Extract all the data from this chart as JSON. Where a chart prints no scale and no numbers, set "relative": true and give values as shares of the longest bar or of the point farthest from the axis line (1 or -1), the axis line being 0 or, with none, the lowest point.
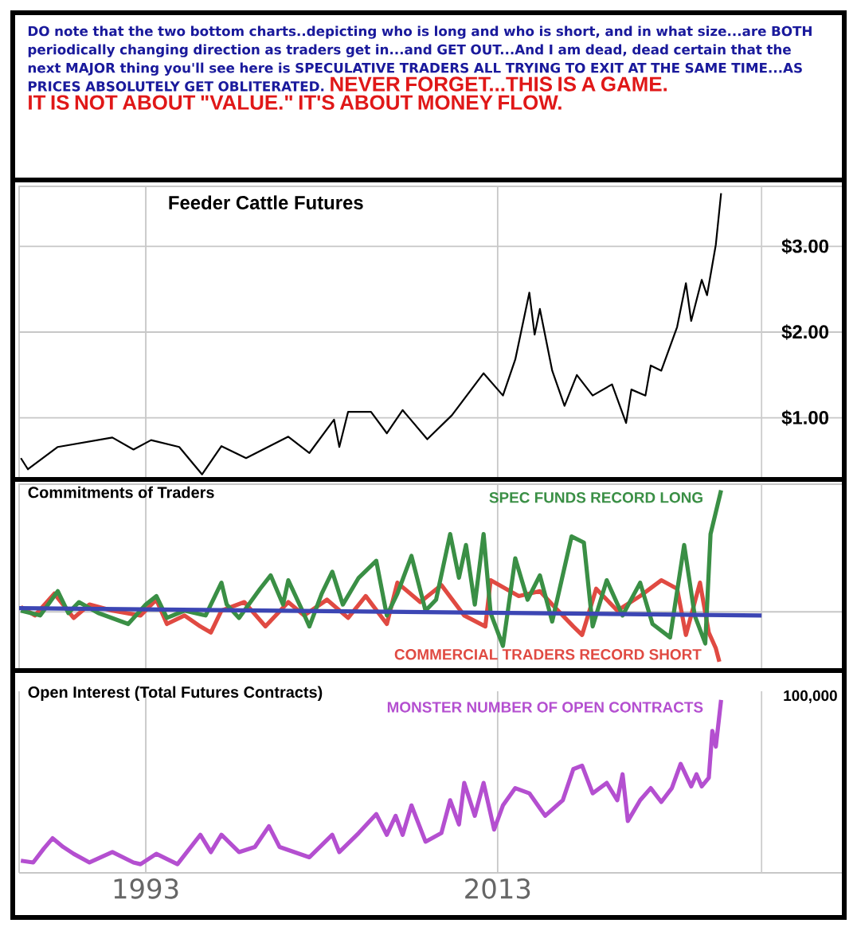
{
  "chart_data": [
    {
      "type": "other",
      "annotations": [
        "DO note that the two bottom charts..depicting who is long and who is short, and in what size...are BOTH periodically changing direction as traders get in...and GET OUT...And I am dead, dead certain that the next MAJOR thing you'll see here is SPECULATIVE TRADERS ALL TRYING TO EXIT AT THE SAME TIME...AS PRICES ABSOLUTELY GET OBLITERATED.",
        "NEVER FORGET...THIS IS A GAME.",
        "IT IS NOT ABOUT \"VALUE.\" IT'S ABOUT MONEY FLOW."
      ]
    },
    {
      "type": "line",
      "title": "Feeder Cattle Futures",
      "xlim": [
        1985.8,
        2032.7
      ],
      "xticks": [
        1993,
        2013
      ],
      "ref_lines": [
        {
          "axis": "x",
          "value": 2028,
          "color": "#cccccc"
        }
      ],
      "ylim": [
        0.3,
        3.7
      ],
      "yticks": [
        {
          "value": 1,
          "label": "$1.00"
        },
        {
          "value": 2,
          "label": "$2.00"
        },
        {
          "value": 3,
          "label": "$3.00"
        }
      ],
      "grid": true,
      "tick_labels": "y",
      "series": [
        {
          "color": "#000000",
          "x": [
            1985.9,
            1986.3,
            1988.0,
            1991.1,
            1992.3,
            1993.3,
            1994.9,
            1996.2,
            1997.3,
            1998.7,
            2001.1,
            2002.3,
            2003.7,
            2004.0,
            2004.5,
            2005.8,
            2006.7,
            2007.6,
            2009.0,
            2010.4,
            2012.2,
            2013.3,
            2014.0,
            2014.8,
            2015.1,
            2015.4,
            2016.1,
            2016.8,
            2017.5,
            2018.4,
            2019.5,
            2020.3,
            2020.6,
            2021.4,
            2021.7,
            2022.3,
            2023.2,
            2023.7,
            2024.0,
            2024.6,
            2024.9,
            2025.4,
            2025.7
          ],
          "values": [
            0.53,
            0.4,
            0.66,
            0.77,
            0.63,
            0.74,
            0.66,
            0.34,
            0.67,
            0.53,
            0.78,
            0.59,
            0.98,
            0.66,
            1.07,
            1.07,
            0.82,
            1.09,
            0.75,
            1.03,
            1.52,
            1.26,
            1.68,
            2.46,
            1.97,
            2.27,
            1.55,
            1.14,
            1.5,
            1.26,
            1.39,
            0.94,
            1.33,
            1.26,
            1.61,
            1.55,
            2.06,
            2.57,
            2.13,
            2.61,
            2.43,
            3.02,
            3.62
          ]
        }
      ]
    },
    {
      "type": "line",
      "title": "Commitments of Traders",
      "relative": true,
      "xlim": [
        1985.8,
        2032.7
      ],
      "xticks": [
        1993,
        2013
      ],
      "ref_lines": [
        {
          "axis": "x",
          "value": 2028,
          "color": "#cccccc"
        }
      ],
      "grid": "x",
      "tick_labels": false,
      "series": [
        {
          "name": "COMMERCIAL TRADERS RECORD SHORT",
          "color": "#e04a42",
          "x": [
            1985.9,
            1986.7,
            1987.8,
            1988.9,
            1989.8,
            1991.1,
            1992.7,
            1993.6,
            1994.2,
            1995.2,
            1996.1,
            1996.7,
            1997.3,
            1998.6,
            1999.8,
            2001.1,
            2002.0,
            2003.3,
            2004.5,
            2005.5,
            2006.7,
            2007.3,
            2008.6,
            2009.8,
            2011.1,
            2012.3,
            2012.6,
            2014.2,
            2015.4,
            2016.1,
            2017.3,
            2017.8,
            2018.6,
            2019.8,
            2021.1,
            2022.3,
            2023.2,
            2023.7,
            2024.5,
            2025.0,
            2025.4,
            2025.6
          ],
          "values": [
            0.04,
            -0.03,
            0.15,
            -0.05,
            0.06,
            0.01,
            -0.03,
            0.1,
            -0.1,
            -0.03,
            -0.12,
            -0.17,
            0.01,
            0.08,
            -0.12,
            0.08,
            -0.03,
            0.1,
            -0.05,
            0.13,
            -0.1,
            0.24,
            0.08,
            0.22,
            -0.03,
            -0.12,
            0.26,
            0.13,
            0.17,
            0.06,
            -0.12,
            -0.19,
            0.19,
            0.01,
            0.13,
            0.26,
            0.19,
            -0.19,
            0.24,
            -0.17,
            -0.3,
            -0.41
          ]
        },
        {
          "name": "SPEC FUNDS RECORD LONG",
          "color": "#3a8f45",
          "x": [
            1985.9,
            1987.0,
            1988.0,
            1988.6,
            1989.2,
            1990.3,
            1992.0,
            1993.0,
            1993.6,
            1994.2,
            1995.2,
            1996.4,
            1997.3,
            1997.6,
            1998.3,
            1999.5,
            2000.1,
            2000.8,
            2001.1,
            2001.9,
            2002.3,
            2003.0,
            2003.6,
            2004.2,
            2005.1,
            2006.1,
            2006.7,
            2007.3,
            2008.1,
            2008.9,
            2009.5,
            2010.3,
            2010.8,
            2011.2,
            2011.7,
            2012.2,
            2012.6,
            2013.3,
            2014.0,
            2014.7,
            2015.4,
            2016.1,
            2017.2,
            2017.9,
            2018.4,
            2019.2,
            2020.1,
            2021.1,
            2021.8,
            2022.8,
            2023.6,
            2024.2,
            2024.8,
            2025.1,
            2025.4,
            2025.7
          ],
          "values": [
            0.01,
            -0.03,
            0.17,
            -0.01,
            0.08,
            -0.01,
            -0.1,
            0.06,
            0.13,
            -0.05,
            0.01,
            -0.03,
            0.24,
            0.06,
            -0.05,
            0.19,
            0.3,
            0.06,
            0.26,
            0.01,
            -0.12,
            0.15,
            0.33,
            0.06,
            0.28,
            0.42,
            -0.03,
            0.15,
            0.46,
            0.01,
            0.1,
            0.64,
            0.28,
            0.55,
            0.06,
            0.64,
            -0.01,
            -0.28,
            0.44,
            0.1,
            0.3,
            -0.08,
            0.62,
            0.57,
            -0.12,
            0.26,
            -0.03,
            0.24,
            -0.1,
            -0.21,
            0.55,
            -0.03,
            -0.26,
            0.64,
            0.82,
            1
          ]
        },
        {
          "color": "#3c46b4",
          "x": [
            1985.8,
            2028
          ],
          "values": [
            0.03,
            -0.03
          ]
        }
      ]
    },
    {
      "type": "line",
      "title": "Open Interest (Total Futures Contracts)",
      "relative": true,
      "annotations": [
        "100,000"
      ],
      "xlim": [
        1985.8,
        2032.7
      ],
      "xticks": [
        1993,
        2013
      ],
      "ref_lines": [
        {
          "axis": "x",
          "value": 2028,
          "color": "#cccccc"
        }
      ],
      "grid": "x",
      "tick_labels": "x",
      "series": [
        {
          "name": "MONSTER NUMBER OF OPEN CONTRACTS",
          "color": "#b44fd0",
          "x": [
            1985.9,
            1986.6,
            1987.2,
            1987.7,
            1988.3,
            1988.9,
            1989.8,
            1991.1,
            1992.3,
            1992.7,
            1993.6,
            1994.8,
            1996.1,
            1996.7,
            1997.3,
            1998.3,
            1999.2,
            2000.0,
            2000.6,
            2002.3,
            2003.6,
            2004.0,
            2005.1,
            2006.1,
            2006.7,
            2007.2,
            2007.6,
            2008.1,
            2008.9,
            2009.8,
            2010.3,
            2010.8,
            2011.1,
            2011.7,
            2012.2,
            2012.8,
            2013.3,
            2014.0,
            2014.8,
            2015.7,
            2016.7,
            2017.3,
            2017.8,
            2018.4,
            2019.2,
            2019.8,
            2020.1,
            2020.4,
            2021.1,
            2021.7,
            2022.3,
            2022.9,
            2023.4,
            2024.0,
            2024.3,
            2024.6,
            2025.0,
            2025.2,
            2025.4,
            2025.7
          ],
          "values": [
            0.07,
            0.06,
            0.14,
            0.2,
            0.15,
            0.11,
            0.06,
            0.12,
            0.06,
            0.05,
            0.11,
            0.05,
            0.22,
            0.12,
            0.22,
            0.12,
            0.15,
            0.27,
            0.15,
            0.09,
            0.22,
            0.12,
            0.23,
            0.34,
            0.22,
            0.33,
            0.22,
            0.39,
            0.18,
            0.23,
            0.42,
            0.28,
            0.52,
            0.33,
            0.52,
            0.25,
            0.39,
            0.49,
            0.46,
            0.33,
            0.42,
            0.6,
            0.62,
            0.46,
            0.52,
            0.42,
            0.57,
            0.3,
            0.42,
            0.49,
            0.41,
            0.49,
            0.63,
            0.5,
            0.57,
            0.5,
            0.55,
            0.82,
            0.73,
            1
          ]
        }
      ]
    }
  ]
}
